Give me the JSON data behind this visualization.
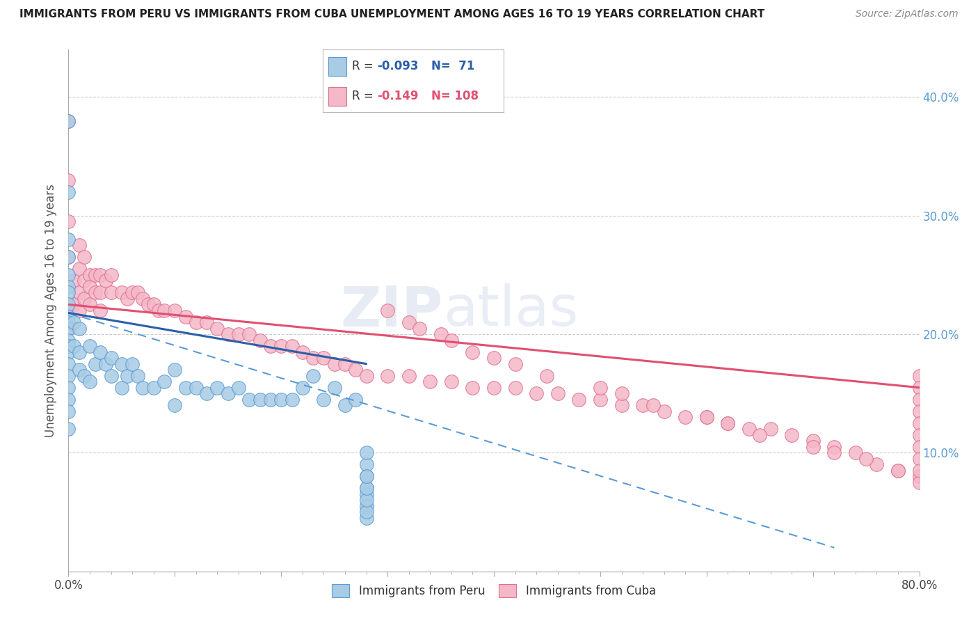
{
  "title": "IMMIGRANTS FROM PERU VS IMMIGRANTS FROM CUBA UNEMPLOYMENT AMONG AGES 16 TO 19 YEARS CORRELATION CHART",
  "source": "Source: ZipAtlas.com",
  "ylabel": "Unemployment Among Ages 16 to 19 years",
  "xlim": [
    0.0,
    0.8
  ],
  "ylim": [
    0.0,
    0.44
  ],
  "ytick_positions": [
    0.1,
    0.2,
    0.3,
    0.4
  ],
  "ytick_labels": [
    "10.0%",
    "20.0%",
    "30.0%",
    "40.0%"
  ],
  "peru_R": "-0.093",
  "peru_N": "71",
  "cuba_R": "-0.149",
  "cuba_N": "108",
  "peru_color": "#a8cce4",
  "peru_edge_color": "#5b9bd5",
  "cuba_color": "#f4b8c8",
  "cuba_edge_color": "#e07090",
  "peru_line_color": "#2b5fa8",
  "cuba_line_color": "#e05070",
  "watermark_zip": "ZIP",
  "watermark_atlas": "atlas",
  "peru_scatter_x": [
    0.0,
    0.0,
    0.0,
    0.0,
    0.0,
    0.0,
    0.0,
    0.0,
    0.0,
    0.0,
    0.0,
    0.0,
    0.0,
    0.0,
    0.0,
    0.0,
    0.0,
    0.0,
    0.0,
    0.0,
    0.005,
    0.005,
    0.01,
    0.01,
    0.01,
    0.015,
    0.02,
    0.02,
    0.025,
    0.03,
    0.035,
    0.04,
    0.04,
    0.05,
    0.05,
    0.055,
    0.06,
    0.065,
    0.07,
    0.08,
    0.09,
    0.1,
    0.1,
    0.11,
    0.12,
    0.13,
    0.14,
    0.15,
    0.16,
    0.17,
    0.18,
    0.19,
    0.2,
    0.21,
    0.22,
    0.23,
    0.24,
    0.25,
    0.26,
    0.27,
    0.28,
    0.28,
    0.28,
    0.28,
    0.28,
    0.28,
    0.28,
    0.28,
    0.28,
    0.28,
    0.28
  ],
  "peru_scatter_y": [
    0.38,
    0.32,
    0.28,
    0.265,
    0.25,
    0.24,
    0.235,
    0.225,
    0.215,
    0.21,
    0.205,
    0.195,
    0.19,
    0.185,
    0.175,
    0.165,
    0.155,
    0.145,
    0.135,
    0.12,
    0.21,
    0.19,
    0.205,
    0.185,
    0.17,
    0.165,
    0.19,
    0.16,
    0.175,
    0.185,
    0.175,
    0.18,
    0.165,
    0.175,
    0.155,
    0.165,
    0.175,
    0.165,
    0.155,
    0.155,
    0.16,
    0.14,
    0.17,
    0.155,
    0.155,
    0.15,
    0.155,
    0.15,
    0.155,
    0.145,
    0.145,
    0.145,
    0.145,
    0.145,
    0.155,
    0.165,
    0.145,
    0.155,
    0.14,
    0.145,
    0.07,
    0.08,
    0.09,
    0.1,
    0.065,
    0.055,
    0.045,
    0.05,
    0.06,
    0.07,
    0.08
  ],
  "cuba_scatter_x": [
    0.0,
    0.0,
    0.0,
    0.0,
    0.0,
    0.005,
    0.005,
    0.01,
    0.01,
    0.01,
    0.01,
    0.015,
    0.015,
    0.015,
    0.02,
    0.02,
    0.02,
    0.025,
    0.025,
    0.03,
    0.03,
    0.03,
    0.035,
    0.04,
    0.04,
    0.05,
    0.055,
    0.06,
    0.065,
    0.07,
    0.075,
    0.08,
    0.085,
    0.09,
    0.1,
    0.11,
    0.12,
    0.13,
    0.14,
    0.15,
    0.16,
    0.17,
    0.18,
    0.19,
    0.2,
    0.21,
    0.22,
    0.23,
    0.24,
    0.25,
    0.26,
    0.27,
    0.28,
    0.3,
    0.32,
    0.34,
    0.36,
    0.38,
    0.4,
    0.42,
    0.44,
    0.46,
    0.48,
    0.5,
    0.52,
    0.54,
    0.56,
    0.58,
    0.6,
    0.62,
    0.64,
    0.66,
    0.68,
    0.7,
    0.72,
    0.74,
    0.76,
    0.78,
    0.8,
    0.3,
    0.32,
    0.33,
    0.35,
    0.36,
    0.38,
    0.4,
    0.42,
    0.45,
    0.5,
    0.52,
    0.55,
    0.6,
    0.62,
    0.65,
    0.7,
    0.72,
    0.75,
    0.78,
    0.8,
    0.8,
    0.8,
    0.8,
    0.8,
    0.8,
    0.8,
    0.8,
    0.8,
    0.8
  ],
  "cuba_scatter_y": [
    0.38,
    0.33,
    0.295,
    0.265,
    0.205,
    0.245,
    0.225,
    0.275,
    0.255,
    0.235,
    0.22,
    0.265,
    0.245,
    0.23,
    0.25,
    0.24,
    0.225,
    0.25,
    0.235,
    0.25,
    0.235,
    0.22,
    0.245,
    0.25,
    0.235,
    0.235,
    0.23,
    0.235,
    0.235,
    0.23,
    0.225,
    0.225,
    0.22,
    0.22,
    0.22,
    0.215,
    0.21,
    0.21,
    0.205,
    0.2,
    0.2,
    0.2,
    0.195,
    0.19,
    0.19,
    0.19,
    0.185,
    0.18,
    0.18,
    0.175,
    0.175,
    0.17,
    0.165,
    0.165,
    0.165,
    0.16,
    0.16,
    0.155,
    0.155,
    0.155,
    0.15,
    0.15,
    0.145,
    0.145,
    0.14,
    0.14,
    0.135,
    0.13,
    0.13,
    0.125,
    0.12,
    0.12,
    0.115,
    0.11,
    0.105,
    0.1,
    0.09,
    0.085,
    0.08,
    0.22,
    0.21,
    0.205,
    0.2,
    0.195,
    0.185,
    0.18,
    0.175,
    0.165,
    0.155,
    0.15,
    0.14,
    0.13,
    0.125,
    0.115,
    0.105,
    0.1,
    0.095,
    0.085,
    0.075,
    0.165,
    0.155,
    0.145,
    0.135,
    0.125,
    0.115,
    0.105,
    0.095,
    0.085
  ]
}
